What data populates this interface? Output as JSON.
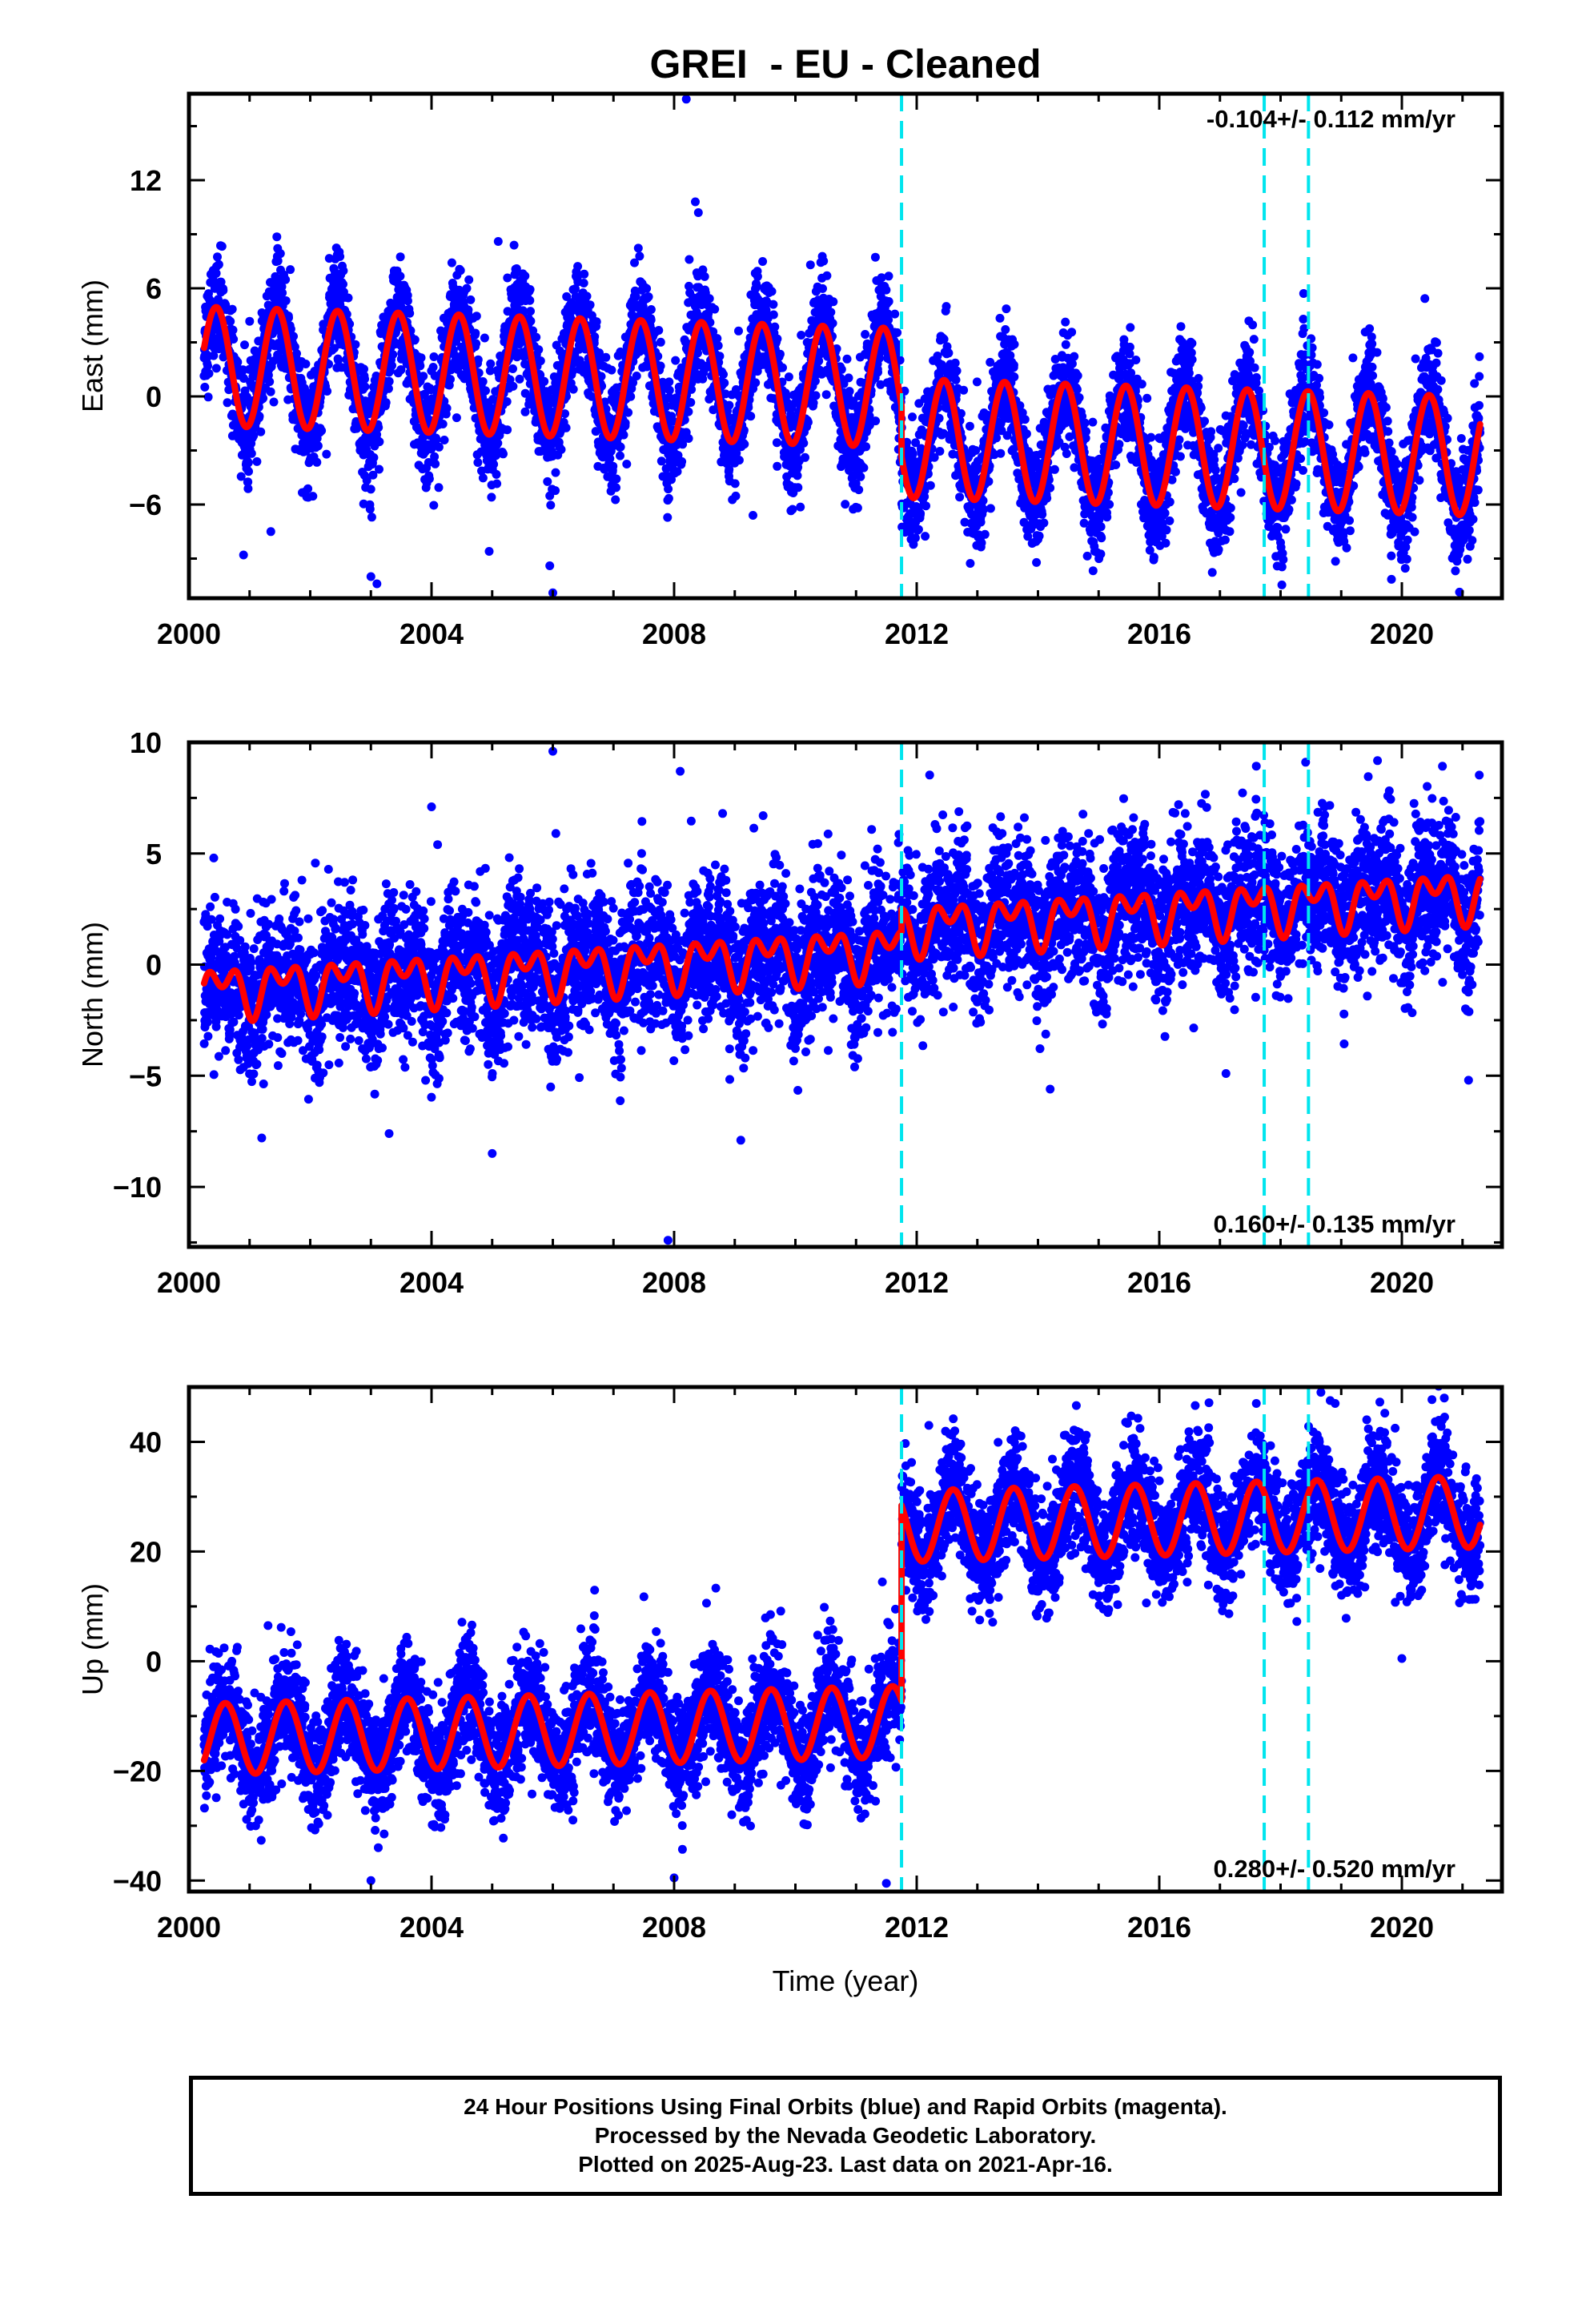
{
  "figure": {
    "title": "GREI  - EU - Cleaned",
    "xlabel": "Time (year)"
  },
  "footer": {
    "line1": "24 Hour Positions Using Final Orbits (blue) and Rapid Orbits (magenta).",
    "line2": "Processed by the Nevada Geodetic Laboratory.",
    "line3": "Plotted on 2025-Aug-23. Last data on 2021-Apr-16."
  },
  "colors": {
    "observations": "#0000ff",
    "model": "#ff0000",
    "equipment_change": "#00e5ee",
    "frame": "#000000"
  },
  "chart_data": [
    {
      "type": "scatter",
      "component": "East",
      "ylabel": "East (mm)",
      "xlim": [
        2000.0,
        2021.65
      ],
      "ylim": [
        -11.2,
        16.8
      ],
      "xticks": [
        2000,
        2004,
        2008,
        2012,
        2016,
        2020
      ],
      "yticks": [
        -6,
        0,
        6,
        12
      ],
      "rate_label": "-0.104+/- 0.112 mm/yr",
      "rate_position": "top-right",
      "events": [
        2011.75,
        2017.73,
        2018.46
      ],
      "series": [
        {
          "role": "observations",
          "color": "#0000ff",
          "data_start": 2000.25,
          "data_end": 2021.29,
          "offset_before": 1.7,
          "offset_after": -1.1,
          "offset_epoch": 2011.75,
          "trend_per_year": -0.104,
          "annual_amplitude": 3.3,
          "annual_phase_peak": 0.45,
          "scatter_sigma": 1.5,
          "outliers": [
            [
              2000.9,
              -8.8
            ],
            [
              2001.35,
              -7.5
            ],
            [
              2003.0,
              -10.0
            ],
            [
              2003.1,
              -10.4
            ],
            [
              2004.95,
              -8.6
            ],
            [
              2005.1,
              8.6
            ],
            [
              2005.95,
              -9.4
            ],
            [
              2006.0,
              -10.9
            ],
            [
              2008.2,
              16.5
            ],
            [
              2008.35,
              10.8
            ],
            [
              2008.4,
              10.2
            ],
            [
              2009.3,
              -6.6
            ],
            [
              2011.8,
              0.3
            ]
          ]
        },
        {
          "role": "model",
          "color": "#ff0000"
        }
      ]
    },
    {
      "type": "scatter",
      "component": "North",
      "ylabel": "North (mm)",
      "xlim": [
        2000.0,
        2021.65
      ],
      "ylim": [
        -12.7,
        10.0
      ],
      "xticks": [
        2000,
        2004,
        2008,
        2012,
        2016,
        2020
      ],
      "yticks": [
        -10,
        -5,
        0,
        5,
        10
      ],
      "rate_label": "0.160+/- 0.135 mm/yr",
      "rate_position": "bottom-right",
      "events": [
        2011.75,
        2017.73,
        2018.46
      ],
      "series": [
        {
          "role": "observations",
          "color": "#0000ff",
          "data_start": 2000.25,
          "data_end": 2021.29,
          "offset_before": -1.2,
          "offset_after": -0.2,
          "offset_epoch": 2011.75,
          "trend_per_year": 0.16,
          "annual_amplitude": 0.8,
          "annual_phase_peak": 0.55,
          "semiannual_amplitude": 0.7,
          "scatter_sigma": 1.6,
          "outliers": [
            [
              2004.0,
              7.1
            ],
            [
              2004.1,
              5.4
            ],
            [
              2005.0,
              -8.5
            ],
            [
              2006.0,
              9.6
            ],
            [
              2006.05,
              5.9
            ],
            [
              2003.3,
              -7.6
            ],
            [
              2008.1,
              8.7
            ],
            [
              2008.8,
              6.8
            ],
            [
              2009.1,
              -7.9
            ],
            [
              2007.9,
              -12.4
            ],
            [
              2014.2,
              -5.6
            ],
            [
              2017.1,
              -4.9
            ],
            [
              2021.1,
              -5.2
            ],
            [
              2001.2,
              -7.8
            ]
          ]
        },
        {
          "role": "model",
          "color": "#ff0000"
        }
      ]
    },
    {
      "type": "scatter",
      "component": "Up",
      "ylabel": "Up (mm)",
      "xaxis_label": "Time (year)",
      "xlim": [
        2000.0,
        2021.65
      ],
      "ylim": [
        -42.0,
        50.0
      ],
      "xticks": [
        2000,
        2004,
        2008,
        2012,
        2016,
        2020
      ],
      "yticks": [
        -40,
        -20,
        0,
        20,
        40
      ],
      "rate_label": "0.280+/- 0.520 mm/yr",
      "rate_position": "bottom-right",
      "events": [
        2011.75,
        2017.73,
        2018.46
      ],
      "series": [
        {
          "role": "observations",
          "color": "#0000ff",
          "data_start": 2000.25,
          "data_end": 2021.29,
          "offset_before": -14.3,
          "offset_after": 21.3,
          "offset_epoch": 2011.75,
          "trend_per_year": 0.28,
          "annual_amplitude": 6.5,
          "annual_phase_peak": 0.6,
          "scatter_sigma": 5.2,
          "outliers": [
            [
              2003.0,
              -40.0
            ],
            [
              2008.0,
              -39.5
            ],
            [
              2011.5,
              -40.5
            ],
            [
              2017.6,
              47.0
            ],
            [
              2020.7,
              48.0
            ],
            [
              2018.9,
              47.0
            ],
            [
              2012.2,
              43.0
            ],
            [
              2020.0,
              0.5
            ]
          ]
        },
        {
          "role": "model",
          "color": "#ff0000"
        }
      ]
    }
  ]
}
